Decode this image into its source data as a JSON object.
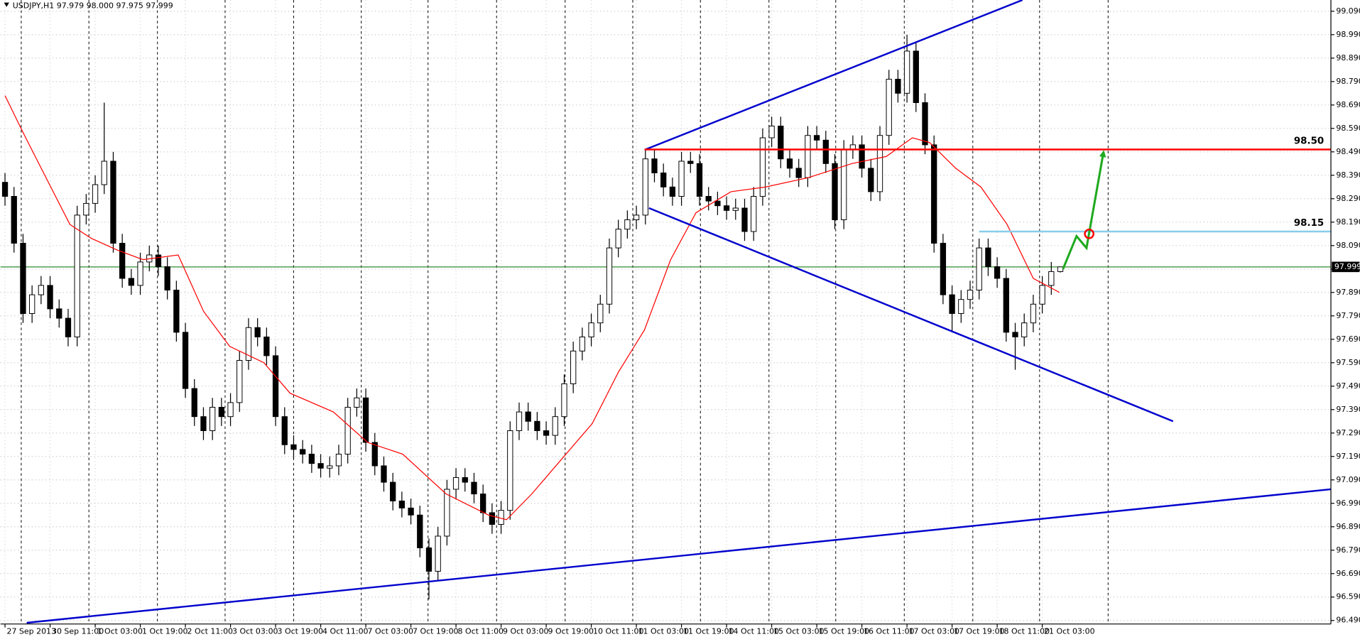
{
  "chart_data": {
    "type": "candlestick",
    "title": "USDJPY,H1  97.979 98.000 97.975 97.999",
    "xlim": [
      -0.5,
      147
    ],
    "ylim": [
      96.475,
      99.138
    ],
    "grid": true,
    "yticks": [
      {
        "value": 99.09,
        "label": "99.090"
      },
      {
        "value": 98.99,
        "label": "98.990"
      },
      {
        "value": 98.89,
        "label": "98.890"
      },
      {
        "value": 98.79,
        "label": "98.790"
      },
      {
        "value": 98.69,
        "label": "98.690"
      },
      {
        "value": 98.59,
        "label": "98.590"
      },
      {
        "value": 98.49,
        "label": "98.490"
      },
      {
        "value": 98.39,
        "label": "98.390"
      },
      {
        "value": 98.29,
        "label": "98.290"
      },
      {
        "value": 98.19,
        "label": "98.190"
      },
      {
        "value": 98.09,
        "label": "98.090"
      },
      {
        "value": 97.99,
        "label": "97.990"
      },
      {
        "value": 97.89,
        "label": "97.890"
      },
      {
        "value": 97.79,
        "label": "97.790"
      },
      {
        "value": 97.69,
        "label": "97.690"
      },
      {
        "value": 97.59,
        "label": "97.590"
      },
      {
        "value": 97.49,
        "label": "97.490"
      },
      {
        "value": 97.39,
        "label": "97.390"
      },
      {
        "value": 97.29,
        "label": "97.290"
      },
      {
        "value": 97.19,
        "label": "97.190"
      },
      {
        "value": 97.09,
        "label": "97.090"
      },
      {
        "value": 96.99,
        "label": "96.990"
      },
      {
        "value": 96.89,
        "label": "96.890"
      },
      {
        "value": 96.79,
        "label": "96.790"
      },
      {
        "value": 96.69,
        "label": "96.690"
      },
      {
        "value": 96.59,
        "label": "96.590"
      },
      {
        "value": 96.49,
        "label": "96.490"
      }
    ],
    "xticks": [
      {
        "value": 0,
        "label": "27 Sep 2013"
      },
      {
        "value": 5,
        "label": "30 Sep 11:00"
      },
      {
        "value": 10,
        "label": "1 Oct 03:00"
      },
      {
        "value": 15,
        "label": "1 Oct 19:00"
      },
      {
        "value": 20,
        "label": "2 Oct 11:00"
      },
      {
        "value": 25,
        "label": "3 Oct 03:00"
      },
      {
        "value": 30,
        "label": "3 Oct 19:00"
      },
      {
        "value": 35,
        "label": "4 Oct 11:00"
      },
      {
        "value": 40,
        "label": "7 Oct 03:00"
      },
      {
        "value": 45,
        "label": "7 Oct 19:00"
      },
      {
        "value": 50,
        "label": "8 Oct 11:00"
      },
      {
        "value": 55,
        "label": "9 Oct 03:00"
      },
      {
        "value": 60,
        "label": "9 Oct 19:00"
      },
      {
        "value": 65,
        "label": "10 Oct 11:00"
      },
      {
        "value": 70,
        "label": "11 Oct 03:00"
      },
      {
        "value": 75,
        "label": "11 Oct 19:00"
      },
      {
        "value": 80,
        "label": "14 Oct 11:00"
      },
      {
        "value": 85,
        "label": "15 Oct 03:00"
      },
      {
        "value": 90,
        "label": "15 Oct 19:00"
      },
      {
        "value": 95,
        "label": "16 Oct 11:00"
      },
      {
        "value": 100,
        "label": "17 Oct 03:00"
      },
      {
        "value": 105,
        "label": "17 Oct 19:00"
      },
      {
        "value": 110,
        "label": "18 Oct 11:00"
      },
      {
        "value": 115,
        "label": "21 Oct 03:00"
      }
    ],
    "day_separators": [
      1.8,
      9.3,
      16.9,
      24.4,
      32.0,
      39.5,
      46.9,
      54.5,
      62.1,
      69.6,
      77.1,
      84.7,
      92.1,
      99.7,
      107.3,
      114.7,
      122.3
    ],
    "candles": {
      "x": [
        0,
        1,
        2,
        3,
        4,
        5,
        6,
        7,
        8,
        9,
        10,
        11,
        12,
        13,
        14,
        15,
        16,
        17,
        18,
        19,
        20,
        21,
        22,
        23,
        24,
        25,
        26,
        27,
        28,
        29,
        30,
        31,
        32,
        33,
        34,
        35,
        36,
        37,
        38,
        39,
        40,
        41,
        42,
        43,
        44,
        45,
        46,
        47,
        48,
        49,
        50,
        51,
        52,
        53,
        54,
        55,
        56,
        57,
        58,
        59,
        60,
        61,
        62,
        63,
        64,
        65,
        66,
        67,
        68,
        69,
        70,
        71,
        72,
        73,
        74,
        75,
        76,
        77,
        78,
        79,
        80,
        81,
        82,
        83,
        84,
        85,
        86,
        87,
        88,
        89,
        90,
        91,
        92,
        93,
        94,
        95,
        96,
        97,
        98,
        99,
        100,
        101,
        102,
        103,
        104,
        105,
        106,
        107,
        108,
        109,
        110,
        111,
        112,
        113,
        114,
        115,
        116,
        117
      ],
      "open": [
        98.36,
        98.3,
        98.1,
        97.8,
        97.88,
        97.92,
        97.82,
        97.78,
        97.7,
        98.22,
        98.27,
        98.35,
        98.45,
        98.1,
        97.95,
        97.92,
        98.02,
        98.05,
        98.0,
        97.9,
        97.72,
        97.48,
        97.36,
        97.3,
        97.4,
        97.36,
        97.42,
        97.6,
        97.74,
        97.7,
        97.62,
        97.36,
        97.24,
        97.22,
        97.2,
        97.16,
        97.14,
        97.15,
        97.2,
        97.4,
        97.44,
        97.25,
        97.15,
        97.08,
        97.0,
        96.97,
        96.94,
        96.8,
        96.7,
        96.85,
        97.05,
        97.1,
        97.08,
        97.03,
        96.95,
        96.9,
        96.96,
        97.3,
        97.38,
        97.34,
        97.3,
        97.28,
        97.36,
        97.5,
        97.64,
        97.7,
        97.76,
        97.84,
        98.08,
        98.16,
        98.2,
        98.22,
        98.46,
        98.4,
        98.34,
        98.3,
        98.45,
        98.44,
        98.3,
        98.28,
        98.26,
        98.24,
        98.25,
        98.15,
        98.3,
        98.55,
        98.6,
        98.46,
        98.42,
        98.38,
        98.56,
        98.54,
        98.44,
        98.2,
        98.5,
        98.52,
        98.42,
        98.32,
        98.56,
        98.8,
        98.74,
        98.92,
        98.7,
        98.52,
        98.1,
        97.88,
        97.8,
        97.86,
        97.9,
        98.08,
        98.0,
        97.95,
        97.72,
        97.7,
        97.76,
        97.84,
        97.92,
        97.979
      ],
      "high": [
        98.4,
        98.34,
        98.14,
        97.92,
        97.96,
        97.96,
        97.86,
        97.82,
        98.26,
        98.31,
        98.39,
        98.7,
        98.49,
        98.14,
        97.99,
        98.06,
        98.09,
        98.09,
        98.04,
        97.94,
        97.76,
        97.52,
        97.4,
        97.44,
        97.44,
        97.46,
        97.64,
        97.78,
        97.78,
        97.74,
        97.66,
        97.4,
        97.28,
        97.26,
        97.24,
        97.2,
        97.19,
        97.24,
        97.44,
        97.48,
        97.48,
        97.29,
        97.19,
        97.12,
        97.04,
        97.01,
        96.98,
        96.84,
        96.89,
        97.09,
        97.14,
        97.14,
        97.12,
        97.07,
        96.99,
        97.0,
        97.34,
        97.42,
        97.42,
        97.38,
        97.34,
        97.4,
        97.54,
        97.68,
        97.74,
        97.8,
        97.88,
        98.12,
        98.2,
        98.24,
        98.26,
        98.5,
        98.5,
        98.44,
        98.38,
        98.49,
        98.49,
        98.48,
        98.34,
        98.32,
        98.3,
        98.29,
        98.29,
        98.34,
        98.59,
        98.64,
        98.64,
        98.5,
        98.46,
        98.6,
        98.6,
        98.58,
        98.48,
        98.54,
        98.56,
        98.56,
        98.46,
        98.6,
        98.84,
        98.84,
        98.99,
        98.96,
        98.74,
        98.56,
        98.14,
        97.92,
        97.9,
        97.94,
        98.12,
        98.12,
        98.04,
        97.99,
        97.76,
        97.8,
        97.88,
        97.96,
        98.02,
        98.0
      ],
      "low": [
        98.26,
        98.06,
        97.76,
        97.76,
        97.84,
        97.78,
        97.74,
        97.66,
        97.66,
        98.18,
        98.23,
        98.31,
        98.06,
        97.91,
        97.88,
        97.88,
        97.98,
        97.96,
        97.86,
        97.68,
        97.44,
        97.32,
        97.26,
        97.26,
        97.32,
        97.32,
        97.38,
        97.56,
        97.66,
        97.58,
        97.32,
        97.2,
        97.18,
        97.16,
        97.12,
        97.1,
        97.1,
        97.11,
        97.16,
        97.36,
        97.21,
        97.11,
        97.04,
        96.96,
        96.93,
        96.9,
        96.76,
        96.58,
        96.66,
        96.81,
        97.01,
        97.04,
        96.99,
        96.91,
        96.86,
        96.86,
        96.92,
        97.26,
        97.3,
        97.26,
        97.24,
        97.24,
        97.32,
        97.46,
        97.6,
        97.66,
        97.72,
        97.8,
        98.04,
        98.12,
        98.16,
        98.18,
        98.36,
        98.3,
        98.26,
        98.26,
        98.4,
        98.26,
        98.24,
        98.22,
        98.2,
        98.2,
        98.11,
        98.11,
        98.26,
        98.51,
        98.42,
        98.38,
        98.34,
        98.34,
        98.5,
        98.4,
        98.16,
        98.16,
        98.46,
        98.38,
        98.28,
        98.28,
        98.52,
        98.7,
        98.7,
        98.66,
        98.48,
        98.06,
        97.84,
        97.72,
        97.76,
        97.82,
        97.86,
        97.96,
        97.91,
        97.68,
        97.56,
        97.66,
        97.72,
        97.8,
        97.88,
        97.975
      ],
      "close": [
        98.3,
        98.1,
        97.8,
        97.88,
        97.92,
        97.82,
        97.78,
        97.7,
        98.22,
        98.27,
        98.35,
        98.45,
        98.1,
        97.95,
        97.92,
        98.02,
        98.05,
        98.0,
        97.9,
        97.72,
        97.48,
        97.36,
        97.3,
        97.4,
        97.36,
        97.42,
        97.6,
        97.74,
        97.7,
        97.62,
        97.36,
        97.24,
        97.22,
        97.2,
        97.16,
        97.14,
        97.15,
        97.2,
        97.4,
        97.44,
        97.25,
        97.15,
        97.08,
        97.0,
        96.97,
        96.94,
        96.8,
        96.7,
        96.85,
        97.05,
        97.1,
        97.08,
        97.03,
        96.95,
        96.9,
        96.96,
        97.3,
        97.38,
        97.34,
        97.3,
        97.28,
        97.36,
        97.5,
        97.64,
        97.7,
        97.76,
        97.84,
        98.08,
        98.16,
        98.2,
        98.22,
        98.46,
        98.4,
        98.34,
        98.3,
        98.45,
        98.44,
        98.3,
        98.28,
        98.26,
        98.24,
        98.25,
        98.15,
        98.3,
        98.55,
        98.6,
        98.46,
        98.42,
        98.38,
        98.56,
        98.54,
        98.44,
        98.2,
        98.5,
        98.52,
        98.42,
        98.32,
        98.56,
        98.8,
        98.74,
        98.92,
        98.7,
        98.52,
        98.1,
        97.88,
        97.8,
        97.86,
        97.9,
        98.08,
        98.0,
        97.95,
        97.72,
        97.7,
        97.76,
        97.84,
        97.92,
        97.979,
        97.999
      ],
      "color": "#000000"
    },
    "moving_average": {
      "color": "#ff0000",
      "x": [
        0,
        1.9,
        4.8,
        7.2,
        9.6,
        12.5,
        15.3,
        19.2,
        22.0,
        24.9,
        28.7,
        31.6,
        36.4,
        40.2,
        44.1,
        48.9,
        53.6,
        55.6,
        58.4,
        61.3,
        65.1,
        68.0,
        70.9,
        73.8,
        76.6,
        80.5,
        84.3,
        89.1,
        93.9,
        97.7,
        100.6,
        102.5,
        105.4,
        108.2,
        111.1,
        114.0,
        116.9
      ],
      "values": [
        98.73,
        98.58,
        98.36,
        98.18,
        98.12,
        98.07,
        98.03,
        98.05,
        97.81,
        97.66,
        97.59,
        97.46,
        97.38,
        97.25,
        97.2,
        97.03,
        96.94,
        96.92,
        97.03,
        97.16,
        97.33,
        97.55,
        97.73,
        98.03,
        98.23,
        98.32,
        98.34,
        98.38,
        98.44,
        98.47,
        98.55,
        98.53,
        98.42,
        98.34,
        98.18,
        97.95,
        97.89
      ]
    },
    "trendlines": [
      {
        "color": "#0000cd",
        "x": [
          71,
          112.8
        ],
        "values": [
          98.5,
          99.138
        ]
      },
      {
        "color": "#0000cd",
        "x": [
          71.4,
          129.5
        ],
        "values": [
          98.25,
          97.34
        ]
      },
      {
        "color": "#0000cd",
        "x": [
          2.4,
          147
        ],
        "values": [
          96.48,
          97.05
        ]
      }
    ],
    "levels": [
      {
        "value": 98.5,
        "label": "98.50",
        "color": "#ff0000",
        "from": 70.9
      },
      {
        "value": 98.15,
        "label": "98.15",
        "color": "#87ceeb",
        "from": 108
      }
    ],
    "current_price": {
      "value": 97.999,
      "label": "97.999",
      "color": "#2e8b2e"
    },
    "arrow": {
      "color": "#1faa1f",
      "x": [
        117.3,
        118.8,
        119.9,
        121.8
      ],
      "values": [
        97.99,
        98.13,
        98.08,
        98.49
      ]
    },
    "marker": {
      "color": "#ff0000",
      "x": 120.2,
      "value": 98.14
    }
  }
}
